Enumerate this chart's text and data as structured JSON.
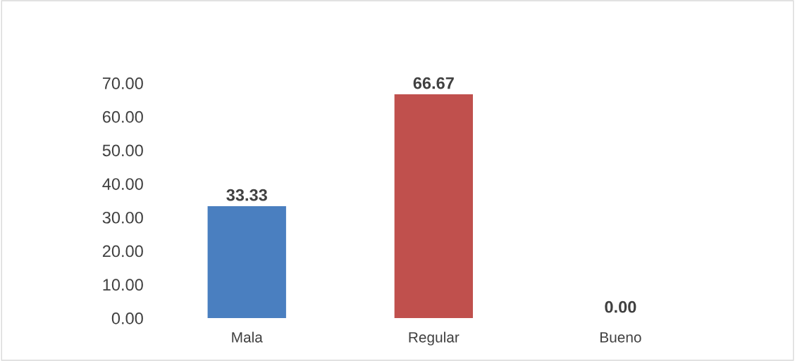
{
  "chart_data": {
    "type": "bar",
    "categories": [
      "Mala",
      "Regular",
      "Bueno"
    ],
    "values": [
      33.33,
      66.67,
      0.0
    ],
    "colors": [
      "#4a7fc0",
      "#c0504d",
      "#77933c"
    ],
    "ylim": [
      0,
      70
    ],
    "yticks": [
      {
        "value": 0,
        "label": "0.00"
      },
      {
        "value": 10,
        "label": "10.00"
      },
      {
        "value": 20,
        "label": "20.00"
      },
      {
        "value": 30,
        "label": "30.00"
      },
      {
        "value": 40,
        "label": "40.00"
      },
      {
        "value": 50,
        "label": "50.00"
      },
      {
        "value": 60,
        "label": "60.00"
      },
      {
        "value": 70,
        "label": "70.00"
      }
    ],
    "value_labels": [
      "33.33",
      "66.67",
      "0.00"
    ],
    "grid": false,
    "legend": false
  }
}
